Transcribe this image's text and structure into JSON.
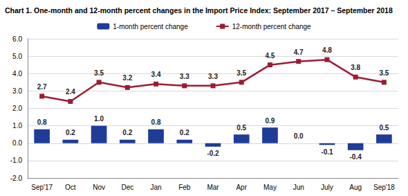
{
  "chart_data": {
    "type": "bar",
    "title": "Chart 1. One-month and 12-month percent changes in the Import Price Index: September 2017 – September 2018",
    "categories": [
      "Sep'17",
      "Oct",
      "Nov",
      "Dec",
      "Jan",
      "Feb",
      "Mar",
      "Apr",
      "May",
      "Jun",
      "July",
      "Aug",
      "Sep'18"
    ],
    "series": [
      {
        "name": "1-month percent change",
        "type": "bar",
        "color": "#1f3c96",
        "values": [
          0.8,
          0.2,
          1.0,
          0.2,
          0.8,
          0.2,
          -0.2,
          0.5,
          0.9,
          0.0,
          -0.1,
          -0.4,
          0.5
        ],
        "value_labels": [
          "0.8",
          "0.2",
          "1.0",
          "0.2",
          "0.8",
          "0.2",
          "-0.2",
          "0.5",
          "0.9",
          "0.0",
          "-0.1",
          "-0.4",
          "0.5"
        ]
      },
      {
        "name": "12-month percent change",
        "type": "line",
        "color": "#9c1c34",
        "marker": "square",
        "values": [
          2.7,
          2.4,
          3.5,
          3.2,
          3.4,
          3.3,
          3.3,
          3.5,
          4.5,
          4.7,
          4.8,
          3.8,
          3.5
        ],
        "value_labels": [
          "2.7",
          "2.4",
          "3.5",
          "3.2",
          "3.4",
          "3.3",
          "3.3",
          "3.5",
          "4.5",
          "4.7",
          "4.8",
          "3.8",
          "3.5"
        ]
      }
    ],
    "ylim": [
      -2,
      6
    ],
    "yticks": [
      {
        "value": -2,
        "label": "-2.0"
      },
      {
        "value": -1,
        "label": "-1.0"
      },
      {
        "value": 0,
        "label": "0.0"
      },
      {
        "value": 1,
        "label": "1.0"
      },
      {
        "value": 2,
        "label": "2.0"
      },
      {
        "value": 3,
        "label": "3.0"
      },
      {
        "value": 4,
        "label": "4.0"
      },
      {
        "value": 5,
        "label": "5.0"
      },
      {
        "value": 6,
        "label": "6.0"
      }
    ],
    "grid": true,
    "legend": "top",
    "data_labels": true
  }
}
